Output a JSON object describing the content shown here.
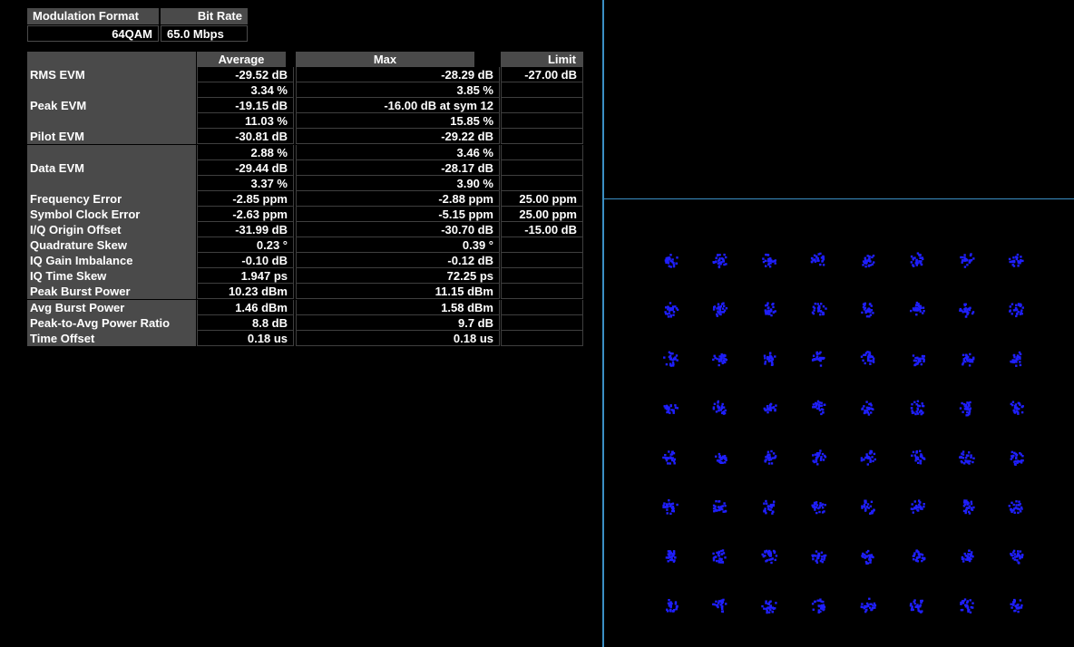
{
  "info": {
    "headers": [
      "Modulation Format",
      "Bit Rate"
    ],
    "values": [
      "64QAM",
      "65.0 Mbps"
    ]
  },
  "table": {
    "columns": [
      "",
      "Average",
      "Max",
      "Limit"
    ],
    "rows": [
      {
        "label": "RMS EVM",
        "average": "-29.52 dB",
        "max": "-28.29 dB",
        "limit": "-27.00 dB"
      },
      {
        "label": "",
        "average": "3.34 %",
        "max": "3.85 %",
        "limit": ""
      },
      {
        "label": "Peak EVM",
        "average": "-19.15 dB",
        "max": "-16.00 dB at sym 12",
        "limit": ""
      },
      {
        "label": "",
        "average": "11.03 %",
        "max": "15.85 %",
        "limit": ""
      },
      {
        "label": "Pilot EVM",
        "average": "-30.81 dB",
        "max": "-29.22 dB",
        "limit": ""
      },
      {
        "label": "",
        "average": "2.88 %",
        "max": "3.46 %",
        "limit": ""
      },
      {
        "label": "Data EVM",
        "average": "-29.44 dB",
        "max": "-28.17 dB",
        "limit": ""
      },
      {
        "label": "",
        "average": "3.37 %",
        "max": "3.90 %",
        "limit": ""
      },
      {
        "label": "Frequency Error",
        "average": "-2.85 ppm",
        "max": "-2.88 ppm",
        "limit": "25.00 ppm"
      },
      {
        "label": "Symbol Clock Error",
        "average": "-2.63 ppm",
        "max": "-5.15 ppm",
        "limit": "25.00 ppm"
      },
      {
        "label": "I/Q Origin Offset",
        "average": "-31.99 dB",
        "max": "-30.70 dB",
        "limit": "-15.00 dB"
      },
      {
        "label": "Quadrature Skew",
        "average": "0.23 °",
        "max": "0.39 °",
        "limit": ""
      },
      {
        "label": "IQ Gain Imbalance",
        "average": "-0.10 dB",
        "max": "-0.12 dB",
        "limit": ""
      },
      {
        "label": "IQ Time Skew",
        "average": "1.947 ps",
        "max": "72.25 ps",
        "limit": ""
      },
      {
        "label": "Peak Burst Power",
        "average": "10.23 dBm",
        "max": "11.15 dBm",
        "limit": ""
      },
      {
        "label": "Avg Burst Power",
        "average": "1.46 dBm",
        "max": "1.58 dBm",
        "limit": ""
      },
      {
        "label": "Peak-to-Avg Power Ratio",
        "average": "8.8 dB",
        "max": "9.7 dB",
        "limit": ""
      },
      {
        "label": "Time Offset",
        "average": "0.18 us",
        "max": "0.18 us",
        "limit": ""
      }
    ]
  },
  "constellation": {
    "type": "scatter",
    "grid_size": 8,
    "point_color": "#1f1fff"
  },
  "colors": {
    "divider": "#3b8fc4",
    "header_bg": "#4a4a4a",
    "background": "#000000"
  }
}
